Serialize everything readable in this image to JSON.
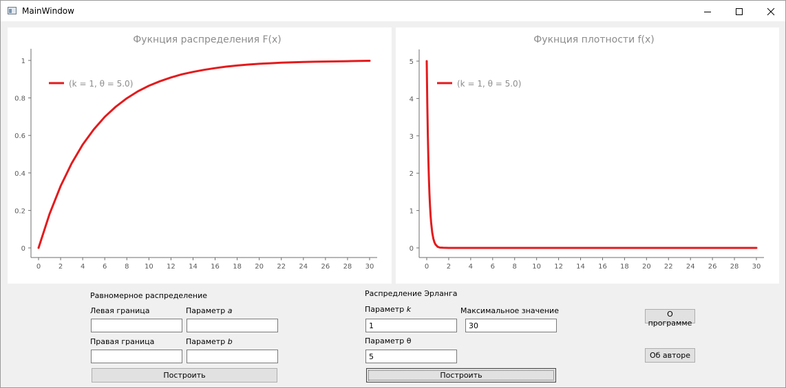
{
  "window": {
    "title": "MainWindow"
  },
  "chart_data": [
    {
      "type": "line",
      "title": "Фукнция распределения F(x)",
      "x_ticks": [
        "0",
        "2",
        "4",
        "6",
        "8",
        "10",
        "12",
        "14",
        "16",
        "18",
        "20",
        "22",
        "24",
        "26",
        "28",
        "30"
      ],
      "y_ticks": [
        "0",
        "0.2",
        "0.4",
        "0.6",
        "0.8",
        "1"
      ],
      "xlim": [
        0,
        30
      ],
      "ylim": [
        0,
        1
      ],
      "legend_position": "top-left",
      "series": [
        {
          "name": "(k = 1, θ = 5.0)",
          "color": "#e41a1c",
          "x": [
            0,
            1,
            2,
            3,
            4,
            5,
            6,
            7,
            8,
            9,
            10,
            11,
            12,
            13,
            14,
            15,
            16,
            17,
            18,
            19,
            20,
            21,
            22,
            23,
            24,
            25,
            26,
            27,
            28,
            29,
            30
          ],
          "y": [
            0,
            0.181,
            0.33,
            0.451,
            0.551,
            0.632,
            0.699,
            0.753,
            0.798,
            0.835,
            0.865,
            0.889,
            0.909,
            0.926,
            0.939,
            0.95,
            0.959,
            0.967,
            0.973,
            0.978,
            0.982,
            0.985,
            0.988,
            0.99,
            0.992,
            0.993,
            0.994,
            0.995,
            0.996,
            0.997,
            0.998
          ]
        }
      ]
    },
    {
      "type": "line",
      "title": "Фукнция плотности f(x)",
      "x_ticks": [
        "0",
        "2",
        "4",
        "6",
        "8",
        "10",
        "12",
        "14",
        "16",
        "18",
        "20",
        "22",
        "24",
        "26",
        "28",
        "30"
      ],
      "y_ticks": [
        "0",
        "1",
        "2",
        "3",
        "4",
        "5"
      ],
      "xlim": [
        0,
        30
      ],
      "ylim": [
        0,
        5
      ],
      "legend_position": "top-left",
      "series": [
        {
          "name": "(k = 1, θ = 5.0)",
          "color": "#e41a1c",
          "x": [
            0,
            0.05,
            0.1,
            0.15,
            0.2,
            0.25,
            0.3,
            0.35,
            0.4,
            0.5,
            0.6,
            0.7,
            0.8,
            1.0,
            1.2,
            1.5,
            2,
            3,
            5,
            10,
            15,
            20,
            25,
            30
          ],
          "y": [
            5,
            3.89,
            3.03,
            2.36,
            1.84,
            1.43,
            1.12,
            0.87,
            0.68,
            0.41,
            0.25,
            0.15,
            0.09,
            0.03,
            0.01,
            0.003,
            0,
            0,
            0,
            0,
            0,
            0,
            0,
            0
          ]
        }
      ]
    }
  ],
  "uniform": {
    "heading": "Равномерное распределение",
    "left_label": "Левая граница",
    "right_label": "Правая граница",
    "param_a_label": "Параметр ",
    "param_a_symbol": "a",
    "param_b_label": "Параметр ",
    "param_b_symbol": "b",
    "left_value": "",
    "right_value": "",
    "a_value": "",
    "b_value": "",
    "build_label": "Построить"
  },
  "erlang": {
    "heading": "Распредление Эрланга",
    "param_k_label": "Параметр ",
    "param_k_symbol": "k",
    "max_label": "Максимальное значение",
    "param_theta_label": "Параметр θ",
    "k_value": "1",
    "max_value": "30",
    "theta_value": "5",
    "build_label": "Построить"
  },
  "buttons": {
    "about_program": "О программе",
    "about_author": "Об авторе"
  }
}
